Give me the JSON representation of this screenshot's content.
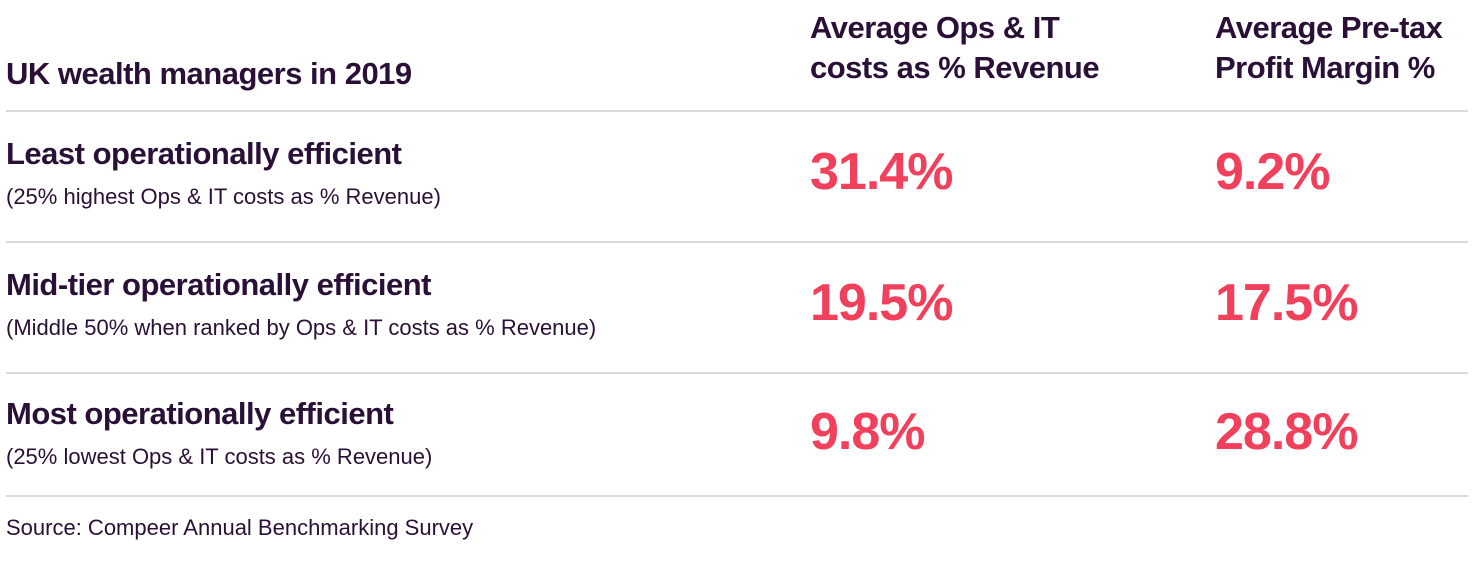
{
  "header": {
    "title": "UK wealth managers in 2019",
    "col1_line1": "Average Ops & IT",
    "col1_line2": "costs as % Revenue",
    "col2_line1": "Average Pre-tax",
    "col2_line2": "Profit Margin %"
  },
  "rows": [
    {
      "title": "Least operationally efficient",
      "subtitle": "(25% highest Ops & IT costs as % Revenue)",
      "ops_it_costs": "31.4%",
      "profit_margin": "9.2%"
    },
    {
      "title": "Mid-tier operationally efficient",
      "subtitle": "(Middle 50% when ranked by Ops & IT costs as % Revenue)",
      "ops_it_costs": "19.5%",
      "profit_margin": "17.5%"
    },
    {
      "title": "Most operationally efficient",
      "subtitle": "(25% lowest Ops & IT costs as % Revenue)",
      "ops_it_costs": "9.8%",
      "profit_margin": "28.8%"
    }
  ],
  "source": "Source: Compeer Annual Benchmarking Survey",
  "colors": {
    "text": "#2a1036",
    "accent": "#f0405b",
    "divider": "#d9d9d9"
  }
}
